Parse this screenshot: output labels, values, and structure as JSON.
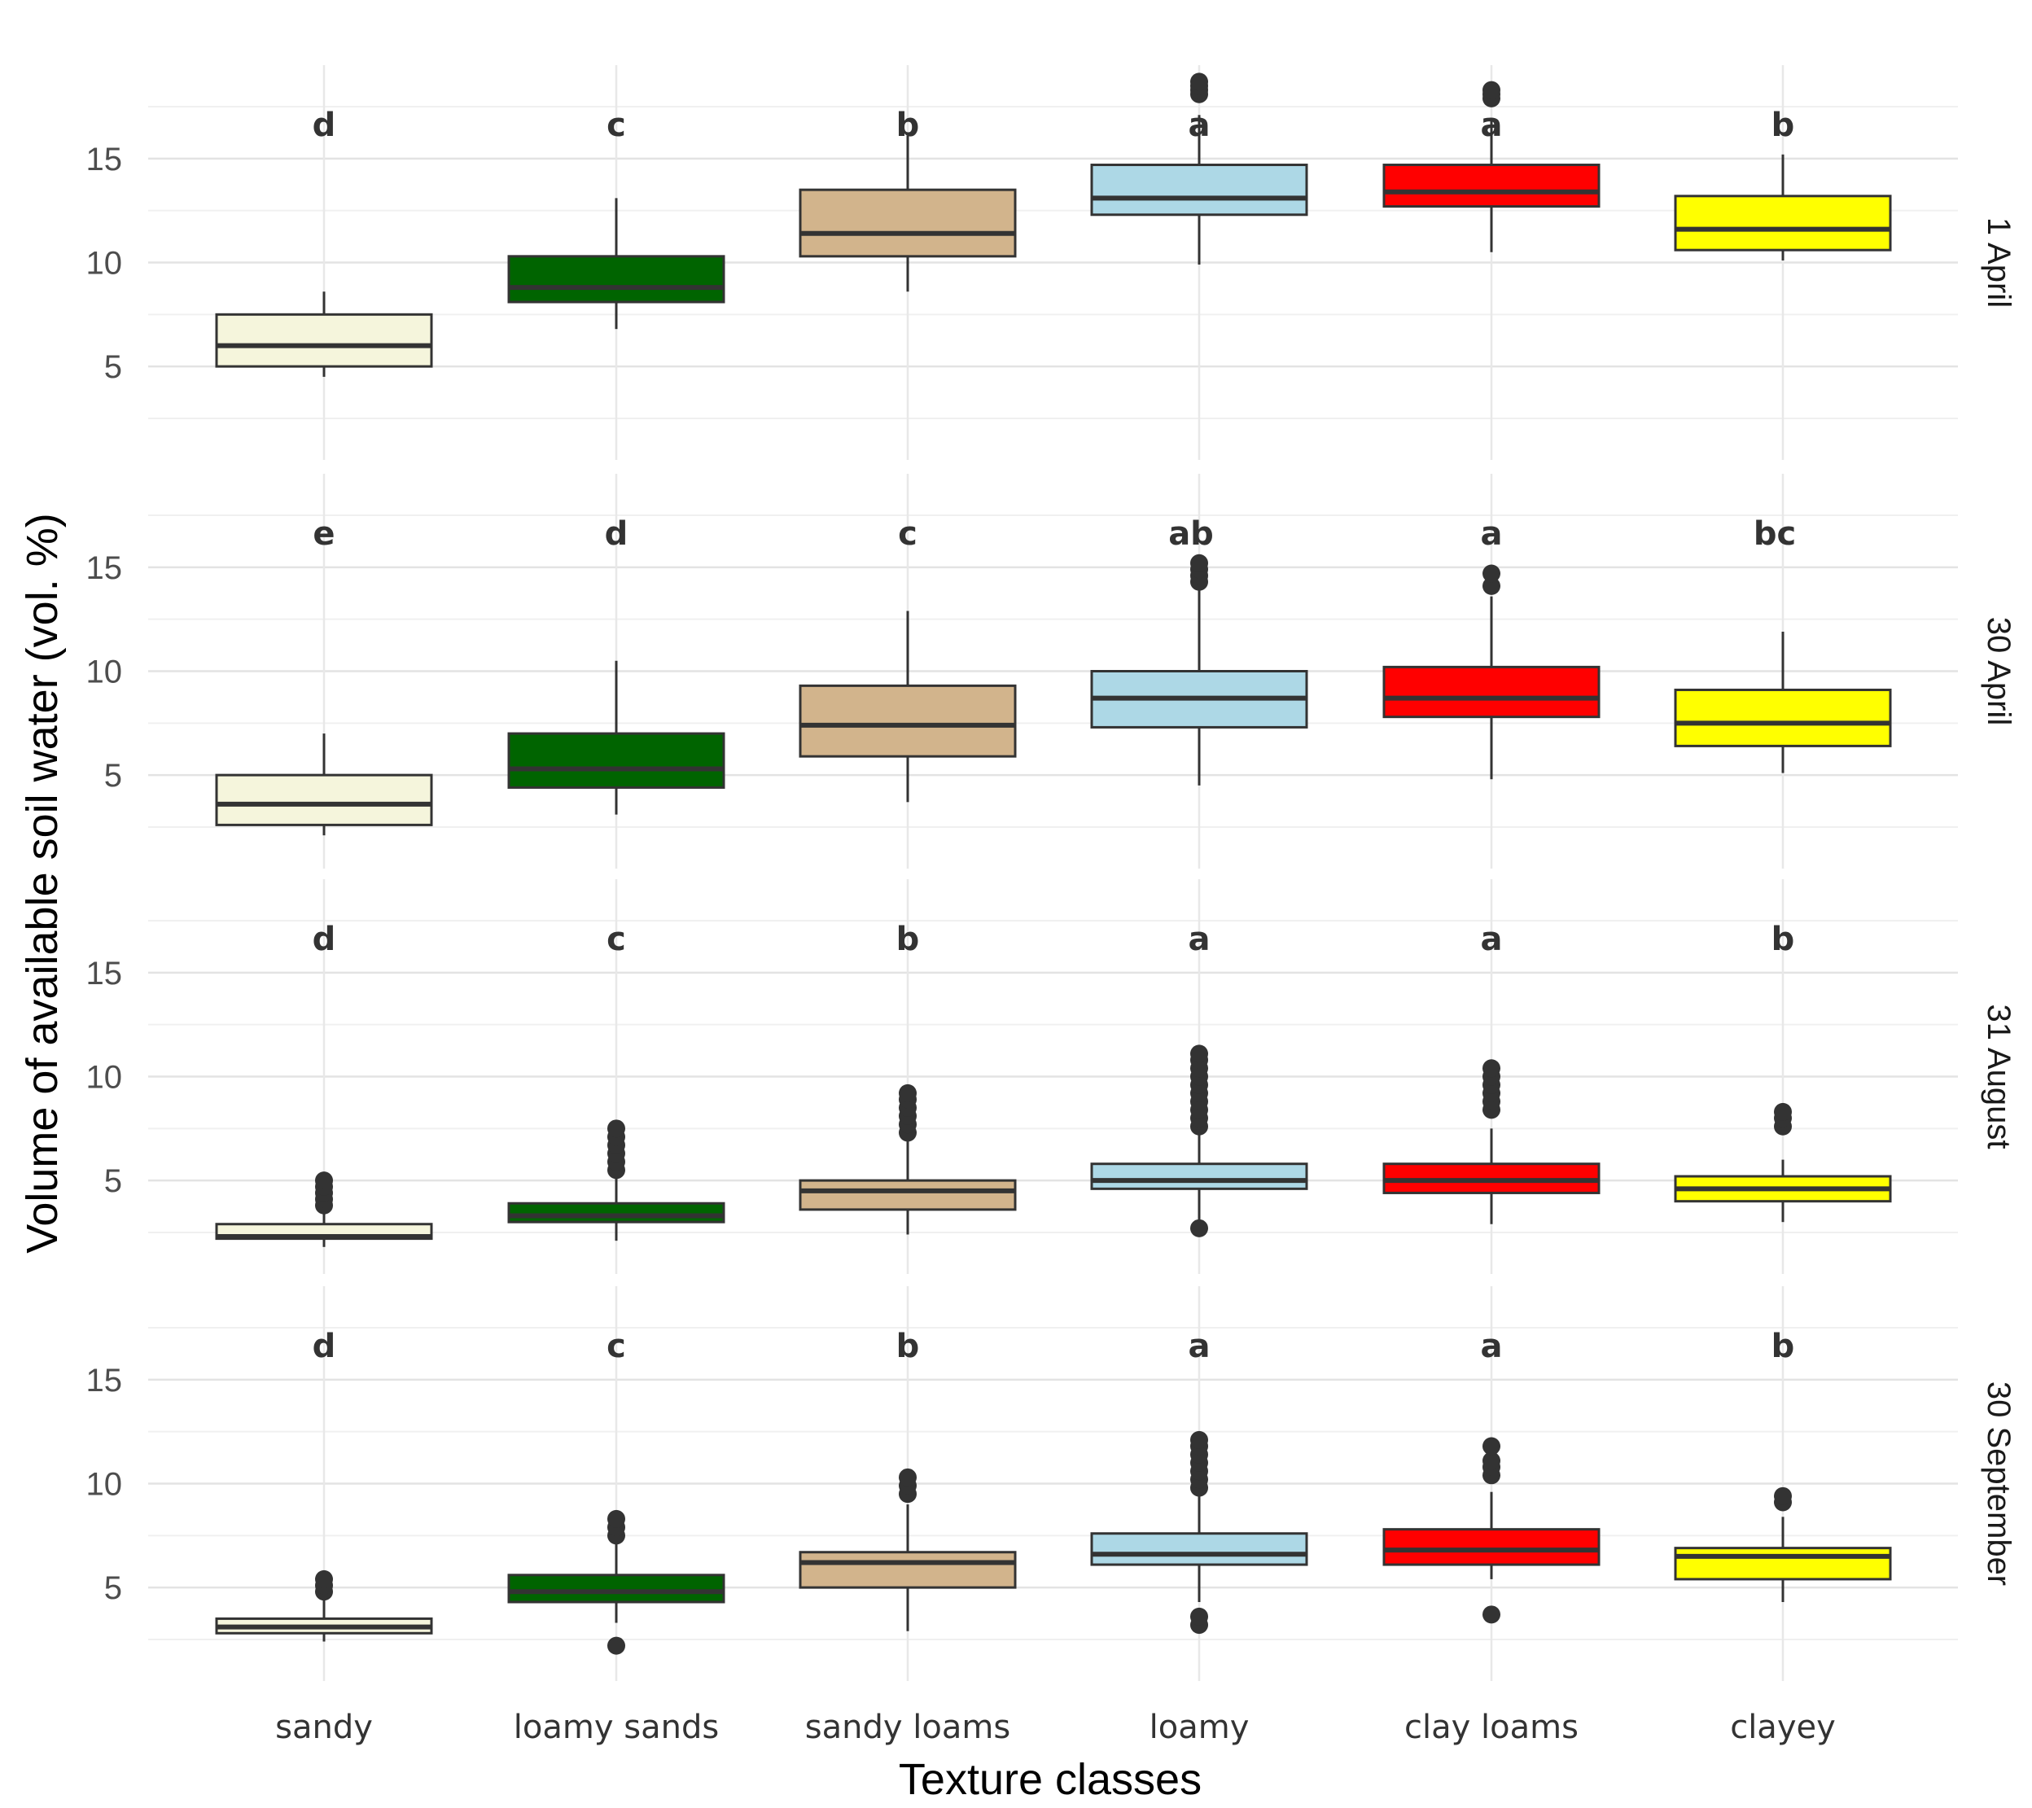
{
  "chart_data": {
    "type": "boxplot",
    "xlabel": "Texture classes",
    "ylabel": "Volume of available soil water (vol. %)",
    "ylim": [
      0.5,
      19.5
    ],
    "yticks": [
      5,
      10,
      15
    ],
    "categories": [
      "sandy",
      "loamy sands",
      "sandy loams",
      "loamy",
      "clay loams",
      "clayey"
    ],
    "colors": [
      "#f5f5dc",
      "#006400",
      "#d2b48c",
      "#add8e6",
      "#ff0000",
      "#ffff00"
    ],
    "panels": [
      {
        "label": "1 April",
        "letters": [
          "d",
          "c",
          "b",
          "a",
          "a",
          "b"
        ],
        "boxes": [
          {
            "q1": 5.0,
            "median": 6.0,
            "q3": 7.5,
            "lower": 4.5,
            "upper": 8.6,
            "outliers": []
          },
          {
            "q1": 8.1,
            "median": 8.8,
            "q3": 10.3,
            "lower": 6.8,
            "upper": 13.1,
            "outliers": []
          },
          {
            "q1": 10.3,
            "median": 11.4,
            "q3": 13.5,
            "lower": 8.6,
            "upper": 16.1,
            "outliers": []
          },
          {
            "q1": 12.3,
            "median": 13.1,
            "q3": 14.7,
            "lower": 9.9,
            "upper": 17.1,
            "outliers": [
              18.1,
              18.3,
              18.5,
              18.7
            ]
          },
          {
            "q1": 12.7,
            "median": 13.4,
            "q3": 14.7,
            "lower": 10.5,
            "upper": 16.8,
            "outliers": [
              17.9,
              18.1,
              18.3
            ]
          },
          {
            "q1": 10.6,
            "median": 11.6,
            "q3": 13.2,
            "lower": 10.1,
            "upper": 15.2,
            "outliers": []
          }
        ]
      },
      {
        "label": "30 April",
        "letters": [
          "e",
          "d",
          "c",
          "ab",
          "a",
          "bc"
        ],
        "boxes": [
          {
            "q1": 2.6,
            "median": 3.6,
            "q3": 5.0,
            "lower": 2.1,
            "upper": 7.0,
            "outliers": []
          },
          {
            "q1": 4.4,
            "median": 5.3,
            "q3": 7.0,
            "lower": 3.1,
            "upper": 10.5,
            "outliers": []
          },
          {
            "q1": 5.9,
            "median": 7.4,
            "q3": 9.3,
            "lower": 3.7,
            "upper": 12.9,
            "outliers": []
          },
          {
            "q1": 7.3,
            "median": 8.7,
            "q3": 10.0,
            "lower": 4.5,
            "upper": 14.0,
            "outliers": [
              14.3,
              14.6,
              14.9,
              15.2
            ]
          },
          {
            "q1": 7.8,
            "median": 8.7,
            "q3": 10.2,
            "lower": 4.8,
            "upper": 13.6,
            "outliers": [
              14.1,
              14.7
            ]
          },
          {
            "q1": 6.4,
            "median": 7.5,
            "q3": 9.1,
            "lower": 5.1,
            "upper": 11.9,
            "outliers": []
          }
        ]
      },
      {
        "label": "31 August",
        "letters": [
          "d",
          "c",
          "b",
          "a",
          "a",
          "b"
        ],
        "boxes": [
          {
            "q1": 2.2,
            "median": 2.3,
            "q3": 2.9,
            "lower": 1.8,
            "upper": 3.5,
            "outliers": [
              3.8,
              4.1,
              4.4,
              4.7,
              5.0
            ]
          },
          {
            "q1": 3.0,
            "median": 3.3,
            "q3": 3.9,
            "lower": 2.1,
            "upper": 5.2,
            "outliers": [
              5.5,
              5.9,
              6.3,
              6.7,
              7.1,
              7.5
            ]
          },
          {
            "q1": 3.6,
            "median": 4.5,
            "q3": 5.0,
            "lower": 2.4,
            "upper": 7.0,
            "outliers": [
              7.3,
              7.7,
              8.1,
              8.5,
              8.9,
              9.2
            ]
          },
          {
            "q1": 4.6,
            "median": 5.0,
            "q3": 5.8,
            "lower": 3.0,
            "upper": 7.3,
            "outliers": [
              2.7,
              7.6,
              8.0,
              8.4,
              8.8,
              9.2,
              9.6,
              10.0,
              10.4,
              10.8,
              11.1
            ]
          },
          {
            "q1": 4.4,
            "median": 5.0,
            "q3": 5.8,
            "lower": 2.9,
            "upper": 7.5,
            "outliers": [
              8.4,
              8.8,
              9.2,
              9.6,
              10.0,
              10.4
            ]
          },
          {
            "q1": 4.0,
            "median": 4.6,
            "q3": 5.2,
            "lower": 3.0,
            "upper": 6.0,
            "outliers": [
              7.6,
              8.0,
              8.3
            ]
          }
        ]
      },
      {
        "label": "30 September",
        "letters": [
          "d",
          "c",
          "b",
          "a",
          "a",
          "b"
        ],
        "boxes": [
          {
            "q1": 2.8,
            "median": 3.1,
            "q3": 3.5,
            "lower": 2.4,
            "upper": 4.5,
            "outliers": [
              4.8,
              5.1,
              5.4
            ]
          },
          {
            "q1": 4.3,
            "median": 4.8,
            "q3": 5.6,
            "lower": 3.3,
            "upper": 7.1,
            "outliers": [
              2.2,
              7.5,
              7.9,
              8.3
            ]
          },
          {
            "q1": 5.0,
            "median": 6.2,
            "q3": 6.7,
            "lower": 2.9,
            "upper": 9.0,
            "outliers": [
              9.5,
              9.9,
              10.3
            ]
          },
          {
            "q1": 6.1,
            "median": 6.6,
            "q3": 7.6,
            "lower": 4.3,
            "upper": 9.5,
            "outliers": [
              3.2,
              3.6,
              9.8,
              10.2,
              10.6,
              11.0,
              11.4,
              11.8,
              12.1
            ]
          },
          {
            "q1": 6.1,
            "median": 6.8,
            "q3": 7.8,
            "lower": 5.4,
            "upper": 9.6,
            "outliers": [
              3.7,
              10.4,
              10.8,
              11.1,
              11.8
            ]
          },
          {
            "q1": 5.4,
            "median": 6.5,
            "q3": 6.9,
            "lower": 4.3,
            "upper": 8.4,
            "outliers": [
              9.1,
              9.4
            ]
          }
        ]
      }
    ]
  }
}
